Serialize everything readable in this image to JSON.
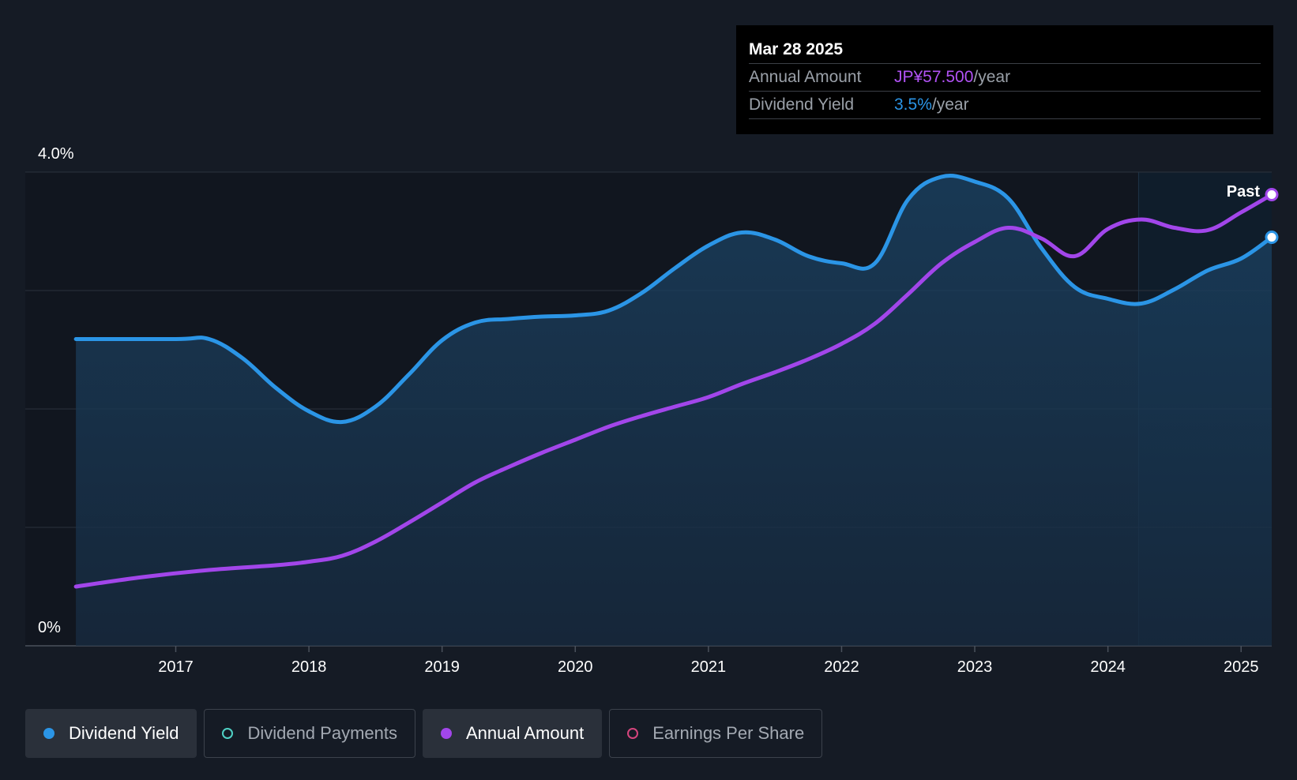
{
  "chart_data": {
    "type": "line",
    "y_axis": {
      "top_label": "4.0%",
      "bottom_label": "0%",
      "ylim": [
        0,
        4.0
      ]
    },
    "x_axis": {
      "tick_labels": [
        "2017",
        "2018",
        "2019",
        "2020",
        "2021",
        "2022",
        "2023",
        "2024",
        "2025"
      ],
      "ticks": [
        2017.0,
        2018.0,
        2019.0,
        2020.0,
        2021.0,
        2022.0,
        2023.0,
        2024.0,
        2025.0
      ],
      "xlim": [
        2015.87,
        2025.23
      ]
    },
    "past_label": "Past",
    "past_region_start": 2024.23,
    "series": [
      {
        "name": "Dividend Yield",
        "color": "#2b95e6",
        "filled": true,
        "x": [
          2016.25,
          2017.0,
          2017.25,
          2017.5,
          2017.75,
          2018.0,
          2018.25,
          2018.5,
          2018.75,
          2019.0,
          2019.25,
          2019.5,
          2019.75,
          2020.0,
          2020.25,
          2020.5,
          2020.75,
          2021.0,
          2021.25,
          2021.5,
          2021.75,
          2022.0,
          2022.25,
          2022.5,
          2022.75,
          2023.0,
          2023.25,
          2023.5,
          2023.75,
          2024.0,
          2024.25,
          2024.5,
          2024.75,
          2025.0,
          2025.23
        ],
        "values": [
          2.59,
          2.59,
          2.59,
          2.43,
          2.18,
          1.98,
          1.89,
          2.02,
          2.29,
          2.58,
          2.73,
          2.76,
          2.78,
          2.79,
          2.83,
          2.98,
          3.19,
          3.38,
          3.49,
          3.43,
          3.29,
          3.23,
          3.23,
          3.77,
          3.96,
          3.92,
          3.78,
          3.36,
          3.03,
          2.93,
          2.89,
          3.01,
          3.17,
          3.27,
          3.45
        ]
      },
      {
        "name": "Annual Amount",
        "color": "#a246ea",
        "filled": false,
        "x": [
          2016.25,
          2016.75,
          2017.25,
          2017.75,
          2018.0,
          2018.25,
          2018.5,
          2018.75,
          2019.0,
          2019.25,
          2019.5,
          2019.75,
          2020.0,
          2020.25,
          2020.5,
          2020.75,
          2021.0,
          2021.25,
          2021.5,
          2021.75,
          2022.0,
          2022.25,
          2022.5,
          2022.75,
          2023.0,
          2023.25,
          2023.5,
          2023.75,
          2024.0,
          2024.25,
          2024.5,
          2024.75,
          2025.0,
          2025.23
        ],
        "values": [
          0.5,
          0.58,
          0.64,
          0.68,
          0.71,
          0.76,
          0.88,
          1.04,
          1.21,
          1.38,
          1.51,
          1.63,
          1.74,
          1.85,
          1.94,
          2.02,
          2.1,
          2.21,
          2.31,
          2.42,
          2.55,
          2.72,
          2.97,
          3.23,
          3.41,
          3.53,
          3.44,
          3.29,
          3.52,
          3.6,
          3.53,
          3.51,
          3.66,
          3.81
        ]
      }
    ]
  },
  "tooltip": {
    "date": "Mar 28 2025",
    "rows": [
      {
        "label": "Annual Amount",
        "value": "JP¥57.500",
        "unit": "/year",
        "color": "#b152f5"
      },
      {
        "label": "Dividend Yield",
        "value": "3.5%",
        "unit": "/year",
        "color": "#2b95e6"
      }
    ]
  },
  "legend": [
    {
      "label": "Dividend Yield",
      "color": "#2b95e6",
      "active": true,
      "filled": true
    },
    {
      "label": "Dividend Payments",
      "color": "#4fd1c5",
      "active": false,
      "filled": false
    },
    {
      "label": "Annual Amount",
      "color": "#a246ea",
      "active": true,
      "filled": true
    },
    {
      "label": "Earnings Per Share",
      "color": "#d5457d",
      "active": false,
      "filled": false
    }
  ]
}
